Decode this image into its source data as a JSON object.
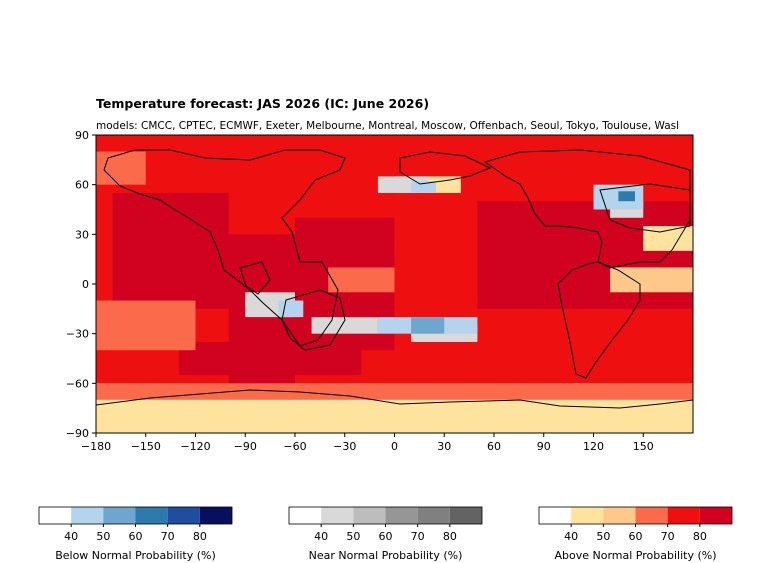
{
  "chart_data": {
    "type": "heatmap",
    "title": "Temperature forecast: JAS 2026 (IC: June 2026)",
    "subtitle": "models: CMCC, CPTEC, ECMWF, Exeter, Melbourne, Montreal, Moscow, Offenbach, Seoul, Tokyo, Toulouse, Wasl",
    "projection": "Plate Carree, central longitude 180",
    "x_ticks": [
      "−180",
      "−150",
      "−120",
      "−90",
      "−60",
      "−30",
      "0",
      "30",
      "60",
      "90",
      "120",
      "150"
    ],
    "y_ticks": [
      "90",
      "60",
      "30",
      "0",
      "−30",
      "−60",
      "−90"
    ],
    "xlim": [
      -180,
      180
    ],
    "ylim": [
      -90,
      90
    ],
    "grid": false,
    "colorbars": [
      {
        "label": "Below Normal Probability (%)",
        "ticks": [
          "40",
          "50",
          "60",
          "70",
          "80"
        ],
        "colors": [
          "#ffffff",
          "#b3d4ec",
          "#6fa6cd",
          "#2c7bab",
          "#1f4ea0",
          "#08105e"
        ]
      },
      {
        "label": "Near Normal Probability (%)",
        "ticks": [
          "40",
          "50",
          "60",
          "70",
          "80"
        ],
        "colors": [
          "#ffffff",
          "#d9d9d9",
          "#bdbdbd",
          "#969696",
          "#808080",
          "#636363"
        ]
      },
      {
        "label": "Above Normal Probability (%)",
        "ticks": [
          "40",
          "50",
          "60",
          "70",
          "80"
        ],
        "colors": [
          "#ffffff",
          "#fde39e",
          "#fdc98b",
          "#fb6a4a",
          "#ee1010",
          "#d0021f"
        ]
      }
    ],
    "regions": [
      {
        "category": "above",
        "level": 4,
        "lon": [
          -180,
          180
        ],
        "lat": [
          -60,
          90
        ]
      },
      {
        "category": "above",
        "level": 3,
        "lon": [
          -180,
          180
        ],
        "lat": [
          -60,
          -70
        ]
      },
      {
        "category": "above",
        "level": 1,
        "lon": [
          -180,
          180
        ],
        "lat": [
          -70,
          -90
        ]
      },
      {
        "category": "above",
        "level": 5,
        "lon": [
          -170,
          -100
        ],
        "lat": [
          -15,
          55
        ]
      },
      {
        "category": "above",
        "level": 5,
        "lon": [
          -100,
          -60
        ],
        "lat": [
          -60,
          30
        ]
      },
      {
        "category": "above",
        "level": 5,
        "lon": [
          -60,
          0
        ],
        "lat": [
          -40,
          40
        ]
      },
      {
        "category": "above",
        "level": 5,
        "lon": [
          50,
          180
        ],
        "lat": [
          -15,
          50
        ]
      },
      {
        "category": "above",
        "level": 5,
        "lon": [
          -130,
          -20
        ],
        "lat": [
          -55,
          -35
        ]
      },
      {
        "category": "above",
        "level": 3,
        "lon": [
          -180,
          -120
        ],
        "lat": [
          -40,
          -10
        ]
      },
      {
        "category": "above",
        "level": 3,
        "lon": [
          -180,
          -150
        ],
        "lat": [
          60,
          80
        ]
      },
      {
        "category": "above",
        "level": 3,
        "lon": [
          -40,
          0
        ],
        "lat": [
          -5,
          10
        ]
      },
      {
        "category": "above",
        "level": 1,
        "lon": [
          0,
          40
        ],
        "lat": [
          55,
          65
        ]
      },
      {
        "category": "above",
        "level": 2,
        "lon": [
          130,
          180
        ],
        "lat": [
          -5,
          10
        ]
      },
      {
        "category": "above",
        "level": 1,
        "lon": [
          150,
          180
        ],
        "lat": [
          20,
          35
        ]
      },
      {
        "category": "near",
        "level": 1,
        "lon": [
          -90,
          -60
        ],
        "lat": [
          -20,
          -5
        ]
      },
      {
        "category": "near",
        "level": 1,
        "lon": [
          -50,
          -10
        ],
        "lat": [
          -30,
          -20
        ]
      },
      {
        "category": "near",
        "level": 1,
        "lon": [
          -10,
          20
        ],
        "lat": [
          55,
          65
        ]
      },
      {
        "category": "near",
        "level": 1,
        "lon": [
          130,
          150
        ],
        "lat": [
          40,
          50
        ]
      },
      {
        "category": "near",
        "level": 1,
        "lon": [
          10,
          50
        ],
        "lat": [
          -35,
          -25
        ]
      },
      {
        "category": "below",
        "level": 1,
        "lon": [
          -10,
          50
        ],
        "lat": [
          -30,
          -20
        ]
      },
      {
        "category": "below",
        "level": 2,
        "lon": [
          10,
          30
        ],
        "lat": [
          -30,
          -20
        ]
      },
      {
        "category": "below",
        "level": 1,
        "lon": [
          -70,
          -55
        ],
        "lat": [
          -20,
          -10
        ]
      },
      {
        "category": "below",
        "level": 1,
        "lon": [
          120,
          150
        ],
        "lat": [
          45,
          60
        ]
      },
      {
        "category": "below",
        "level": 3,
        "lon": [
          135,
          145
        ],
        "lat": [
          50,
          56
        ]
      },
      {
        "category": "below",
        "level": 1,
        "lon": [
          10,
          25
        ],
        "lat": [
          55,
          62
        ]
      }
    ]
  }
}
